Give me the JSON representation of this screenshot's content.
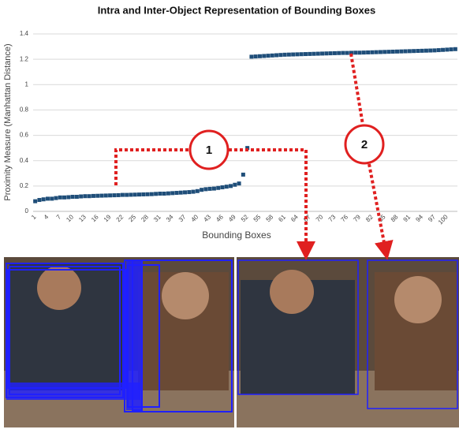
{
  "chart_data": {
    "type": "scatter",
    "title": "Intra and Inter-Object Representation of Bounding Boxes",
    "x_label": "Bounding Boxes",
    "y_label": "Proximity Measure (Manhattan Distance)",
    "categories": [
      "1",
      null,
      null,
      "4",
      null,
      null,
      "7",
      null,
      null,
      "10",
      null,
      null,
      "13",
      null,
      null,
      "16",
      null,
      null,
      "19",
      null,
      null,
      "22",
      null,
      null,
      "25",
      null,
      null,
      "28",
      null,
      null,
      "31",
      null,
      null,
      "34",
      null,
      null,
      "37",
      null,
      null,
      "40",
      null,
      null,
      "43",
      null,
      null,
      "46",
      null,
      null,
      "49",
      null,
      null,
      "52",
      null,
      null,
      "55",
      null,
      null,
      "58",
      null,
      null,
      "61",
      null,
      null,
      "64",
      null,
      null,
      "67",
      null,
      null,
      "70",
      null,
      null,
      "73",
      null,
      null,
      "76",
      null,
      null,
      "79",
      null,
      null,
      "82",
      null,
      null,
      "85",
      null,
      null,
      "88",
      null,
      null,
      "91",
      null,
      null,
      "94",
      null,
      null,
      "97",
      null,
      null,
      "100",
      null,
      null
    ],
    "series": [
      {
        "color": "#1f4e79",
        "values": [
          0.08,
          0.09,
          0.095,
          0.1,
          0.1,
          0.105,
          0.11,
          0.11,
          0.112,
          0.115,
          0.115,
          0.118,
          0.12,
          0.12,
          0.122,
          0.123,
          0.124,
          0.125,
          0.126,
          0.127,
          0.128,
          0.13,
          0.13,
          0.131,
          0.132,
          0.133,
          0.134,
          0.135,
          0.136,
          0.138,
          0.14,
          0.14,
          0.142,
          0.144,
          0.146,
          0.148,
          0.15,
          0.152,
          0.155,
          0.16,
          0.17,
          0.175,
          0.178,
          0.18,
          0.185,
          0.19,
          0.195,
          0.2,
          0.21,
          0.22,
          0.29,
          0.5,
          1.22,
          1.222,
          1.224,
          1.226,
          1.228,
          1.23,
          1.232,
          1.234,
          1.236,
          1.237,
          1.238,
          1.239,
          1.24,
          1.241,
          1.242,
          1.243,
          1.244,
          1.245,
          1.246,
          1.247,
          1.248,
          1.249,
          1.25,
          1.25,
          1.251,
          1.252,
          1.252,
          1.253,
          1.254,
          1.255,
          1.256,
          1.257,
          1.258,
          1.259,
          1.26,
          1.261,
          1.262,
          1.263,
          1.264,
          1.265,
          1.266,
          1.267,
          1.268,
          1.269,
          1.27,
          1.272,
          1.274,
          1.276,
          1.278,
          1.28
        ]
      }
    ],
    "ylim": [
      0,
      1.4
    ],
    "yticks": [
      0,
      0.2,
      0.4,
      0.6,
      0.8,
      1,
      1.2,
      1.4
    ],
    "grid": true,
    "annotations": [
      "1",
      "2"
    ]
  }
}
